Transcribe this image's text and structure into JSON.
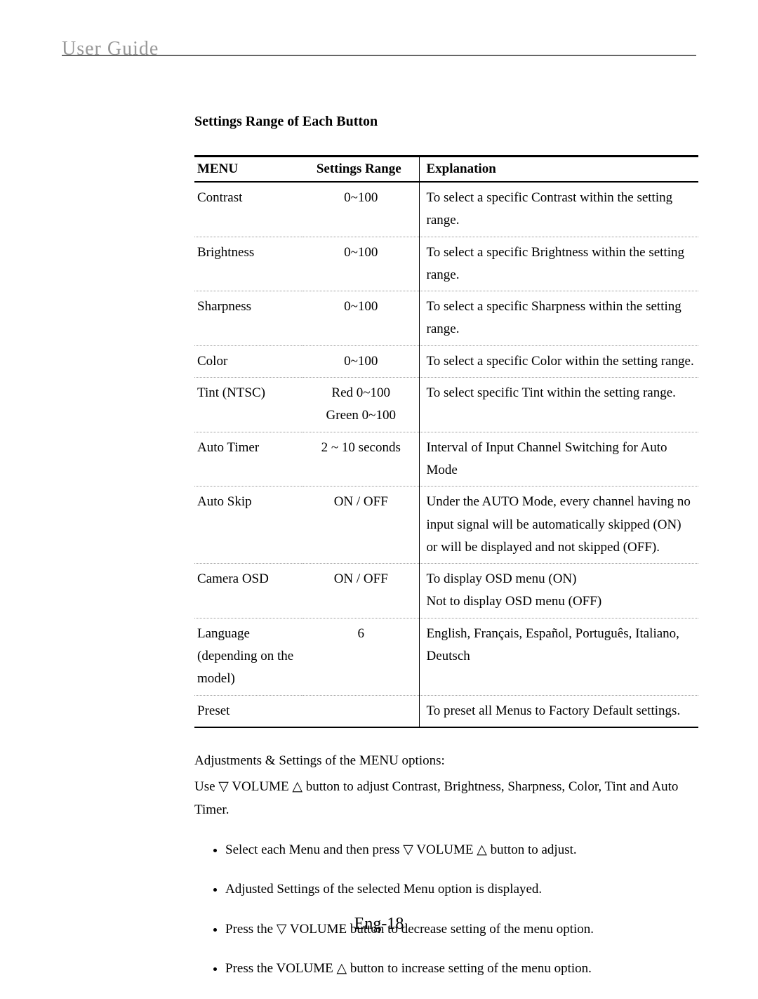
{
  "header": "User Guide",
  "section_title": "Settings Range of Each Button",
  "table": {
    "headers": {
      "menu": "MENU",
      "range": "Settings Range",
      "exp": "Explanation"
    },
    "rows": [
      {
        "menu": "Contrast",
        "range": "0~100",
        "exp": "To select a specific Contrast within the setting range."
      },
      {
        "menu": "Brightness",
        "range": "0~100",
        "exp": "To select a specific Brightness within the setting range."
      },
      {
        "menu": "Sharpness",
        "range": "0~100",
        "exp": "To select a specific Sharpness within the setting range."
      },
      {
        "menu": "Color",
        "range": "0~100",
        "exp": "To select a specific Color within the setting range."
      },
      {
        "menu": "Tint (NTSC)",
        "range": "Red 0~100\nGreen 0~100",
        "exp": "To select specific Tint within the setting range."
      },
      {
        "menu": "Auto Timer",
        "range": "2 ~ 10 seconds",
        "exp": "Interval of Input Channel Switching for Auto Mode"
      },
      {
        "menu": "Auto Skip",
        "range": "ON / OFF",
        "exp": "Under the AUTO Mode, every channel having no input signal will be automatically skipped (ON) or will be displayed and not skipped (OFF)."
      },
      {
        "menu": "Camera OSD",
        "range": "ON / OFF",
        "exp": "To display OSD menu (ON)\nNot to display OSD menu (OFF)"
      },
      {
        "menu": "Language (depending on the model)",
        "range": "6",
        "exp": "English, Français, Español, Português, Italiano, Deutsch"
      },
      {
        "menu": "Preset",
        "range": "",
        "exp": "To preset all Menus to Factory Default settings."
      }
    ]
  },
  "notes": {
    "line1": "Adjustments & Settings of the MENU options:",
    "line2": "Use ▽ VOLUME △  button to adjust Contrast, Brightness, Sharpness, Color, Tint and Auto Timer."
  },
  "bullets": [
    "Select each Menu and then press ▽ VOLUME △  button to adjust.",
    "Adjusted Settings of the selected Menu option is displayed.",
    "Press the ▽ VOLUME button to decrease setting of the menu option.",
    "Press the VOLUME △  button to increase setting of the menu option."
  ],
  "page_number": "Eng-18"
}
